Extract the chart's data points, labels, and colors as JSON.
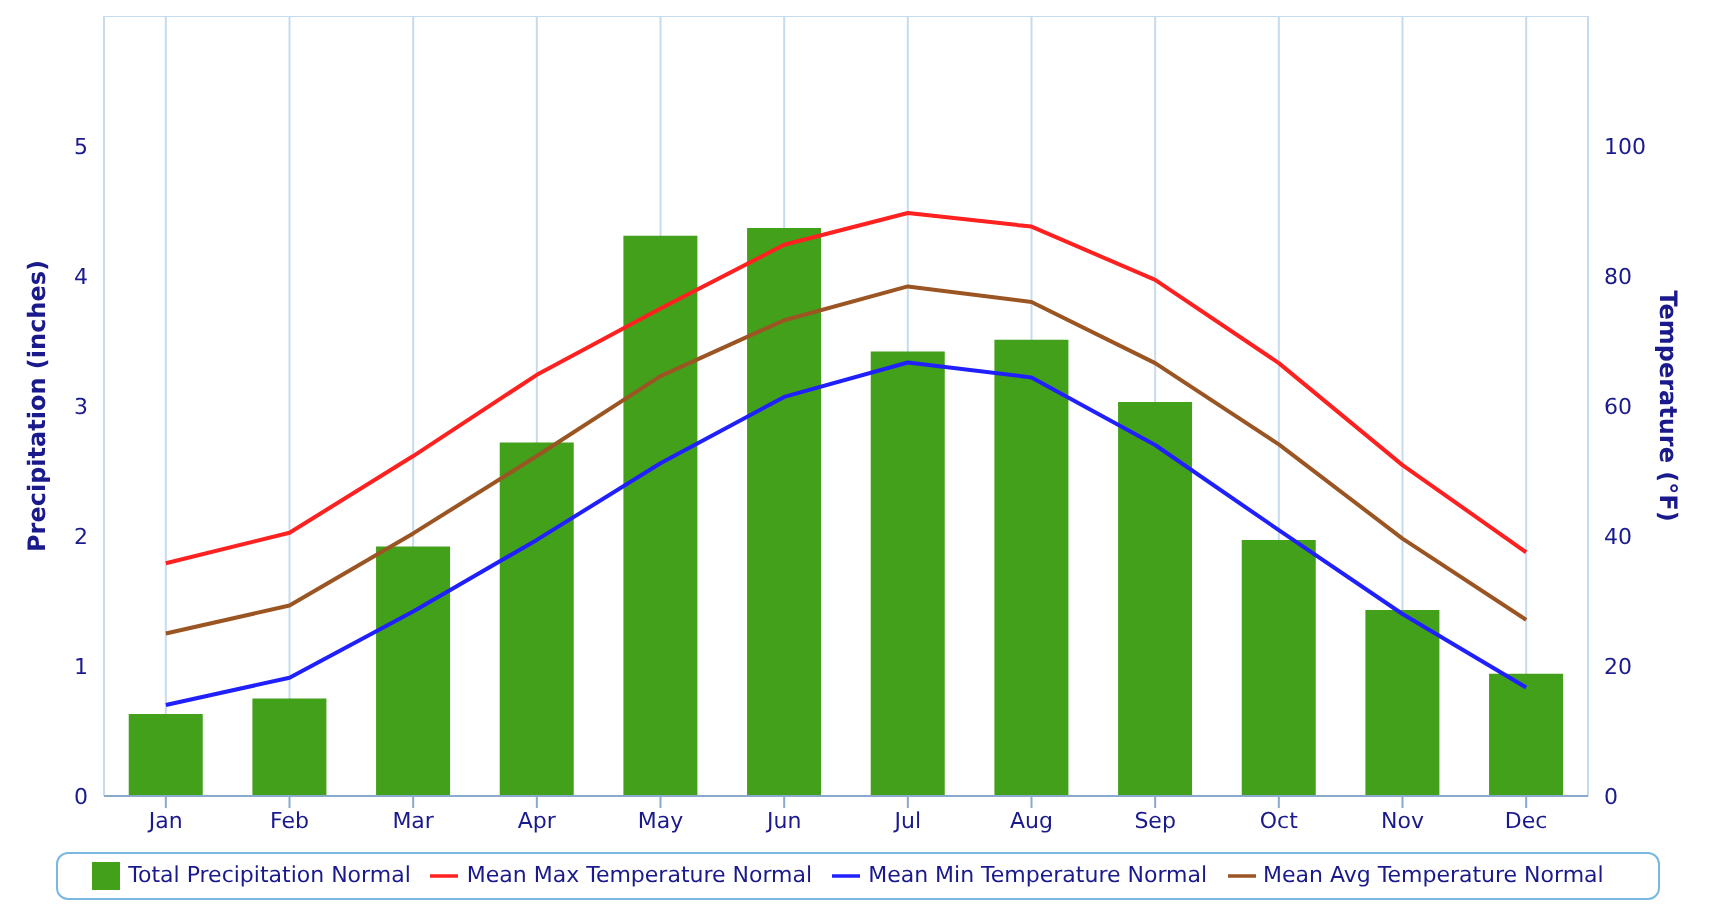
{
  "chart_data": {
    "type": "bar",
    "categories": [
      "Jan",
      "Feb",
      "Mar",
      "Apr",
      "May",
      "Jun",
      "Jul",
      "Aug",
      "Sep",
      "Oct",
      "Nov",
      "Dec"
    ],
    "ylabel": "Precipitation (inches)",
    "y2label": "Temperature (°F)",
    "ylim": [
      0,
      6
    ],
    "yticks": [
      0,
      1,
      2,
      3,
      4,
      5
    ],
    "y2lim": [
      0,
      120
    ],
    "y2ticks": [
      0,
      20,
      40,
      60,
      80,
      100
    ],
    "grid": true,
    "legend": "bottom",
    "marker": "none",
    "line_style": "solid",
    "series": [
      {
        "name": "Total Precipitation Normal",
        "color": "#43a01a",
        "values": [
          0.63,
          0.75,
          1.92,
          2.72,
          4.31,
          4.37,
          3.42,
          3.51,
          3.03,
          1.97,
          1.43,
          0.94
        ]
      },
      {
        "name": "Mean Max Temperature Normal",
        "type": "line",
        "axis": "y2",
        "color": "#ff2020",
        "values": [
          35.8,
          40.5,
          52.3,
          64.8,
          75,
          84.8,
          89.7,
          87.6,
          79.4,
          66.6,
          50.9,
          37.5
        ]
      },
      {
        "name": "Mean Min Temperature Normal",
        "type": "line",
        "axis": "y2",
        "color": "#2020ff",
        "values": [
          14,
          18.2,
          28.4,
          39.4,
          51.2,
          61.4,
          66.7,
          64.4,
          54,
          40.9,
          28,
          16.7
        ]
      },
      {
        "name": "Mean Avg Temperature Normal",
        "type": "line",
        "axis": "y2",
        "color": "#9b5523",
        "values": [
          25,
          29.3,
          40.4,
          52.3,
          64.6,
          73.2,
          78.4,
          76,
          66.6,
          54.1,
          39.6,
          27.1
        ]
      }
    ]
  }
}
